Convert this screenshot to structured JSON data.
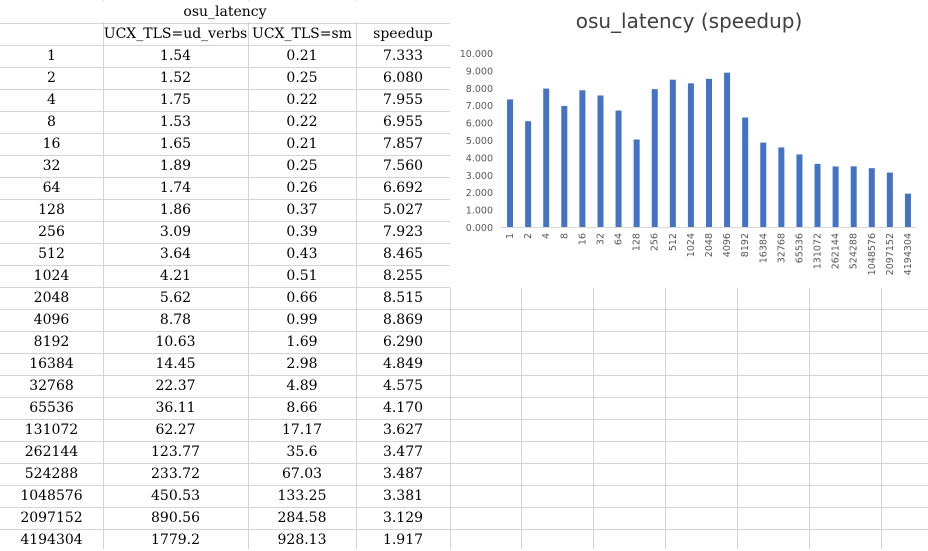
{
  "table": {
    "title": "osu_latency",
    "headers": [
      "",
      "UCX_TLS=ud_verbs",
      "UCX_TLS=sm",
      "speedup"
    ],
    "rows": [
      [
        "1",
        "1.54",
        "0.21",
        "7.333"
      ],
      [
        "2",
        "1.52",
        "0.25",
        "6.080"
      ],
      [
        "4",
        "1.75",
        "0.22",
        "7.955"
      ],
      [
        "8",
        "1.53",
        "0.22",
        "6.955"
      ],
      [
        "16",
        "1.65",
        "0.21",
        "7.857"
      ],
      [
        "32",
        "1.89",
        "0.25",
        "7.560"
      ],
      [
        "64",
        "1.74",
        "0.26",
        "6.692"
      ],
      [
        "128",
        "1.86",
        "0.37",
        "5.027"
      ],
      [
        "256",
        "3.09",
        "0.39",
        "7.923"
      ],
      [
        "512",
        "3.64",
        "0.43",
        "8.465"
      ],
      [
        "1024",
        "4.21",
        "0.51",
        "8.255"
      ],
      [
        "2048",
        "5.62",
        "0.66",
        "8.515"
      ],
      [
        "4096",
        "8.78",
        "0.99",
        "8.869"
      ],
      [
        "8192",
        "10.63",
        "1.69",
        "6.290"
      ],
      [
        "16384",
        "14.45",
        "2.98",
        "4.849"
      ],
      [
        "32768",
        "22.37",
        "4.89",
        "4.575"
      ],
      [
        "65536",
        "36.11",
        "8.66",
        "4.170"
      ],
      [
        "131072",
        "62.27",
        "17.17",
        "3.627"
      ],
      [
        "262144",
        "123.77",
        "35.6",
        "3.477"
      ],
      [
        "524288",
        "233.72",
        "67.03",
        "3.487"
      ],
      [
        "1048576",
        "450.53",
        "133.25",
        "3.381"
      ],
      [
        "2097152",
        "890.56",
        "284.58",
        "3.129"
      ],
      [
        "4194304",
        "1779.2",
        "928.13",
        "1.917"
      ]
    ]
  },
  "chart_data": {
    "type": "bar",
    "title": "osu_latency (speedup)",
    "xlabel": "",
    "ylabel": "",
    "categories": [
      "1",
      "2",
      "4",
      "8",
      "16",
      "32",
      "64",
      "128",
      "256",
      "512",
      "1024",
      "2048",
      "4096",
      "8192",
      "16384",
      "32768",
      "65536",
      "131072",
      "262144",
      "524288",
      "1048576",
      "2097152",
      "4194304"
    ],
    "values": [
      7.333,
      6.08,
      7.955,
      6.955,
      7.857,
      7.56,
      6.692,
      5.027,
      7.923,
      8.465,
      8.255,
      8.515,
      8.869,
      6.29,
      4.849,
      4.575,
      4.17,
      3.627,
      3.477,
      3.487,
      3.381,
      3.129,
      1.917
    ],
    "yticks": [
      "0.000",
      "1.000",
      "2.000",
      "3.000",
      "4.000",
      "5.000",
      "6.000",
      "7.000",
      "8.000",
      "9.000",
      "10.000"
    ],
    "ylim": [
      0,
      10
    ],
    "bar_color": "#4472C4",
    "grid": false,
    "legend": "none"
  },
  "colors": {
    "gridline": "#D4D4D4",
    "axis": "#D9D9D9",
    "title": "#404040",
    "tick": "#595959"
  }
}
